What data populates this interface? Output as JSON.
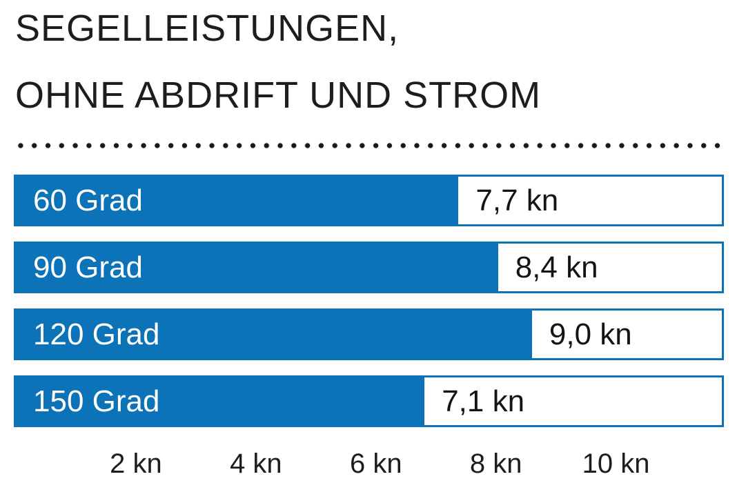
{
  "title": {
    "line1": "SEGELLEISTUNGEN,",
    "line2": "OHNE ABDRIFT UND STROM"
  },
  "chart_data": {
    "type": "bar",
    "orientation": "horizontal",
    "title": "SEGELLEISTUNGEN, OHNE ABDRIFT UND STROM",
    "categories": [
      "60 Grad",
      "90 Grad",
      "120 Grad",
      "150 Grad"
    ],
    "values": [
      7.7,
      8.4,
      9.0,
      7.1
    ],
    "value_labels": [
      "7,7 kn",
      "8,4 kn",
      "9,0 kn",
      "7,1 kn"
    ],
    "unit": "kn",
    "xlim": [
      0,
      11.8
    ],
    "x_ticks": [
      {
        "value": 2,
        "label": "2 kn"
      },
      {
        "value": 4,
        "label": "4 kn"
      },
      {
        "value": 6,
        "label": "6 kn"
      },
      {
        "value": 8,
        "label": "8 kn"
      },
      {
        "value": 10,
        "label": "10 kn"
      }
    ],
    "grid": false,
    "legend": false,
    "bar_color": "#0c73b8",
    "bar_label_color": "#ffffff",
    "value_label_color": "#141414"
  },
  "colors": {
    "accent_blue": "#0c73b8",
    "text_dark": "#1d1d1b",
    "dots": "#1a1a1a",
    "background": "#ffffff"
  }
}
